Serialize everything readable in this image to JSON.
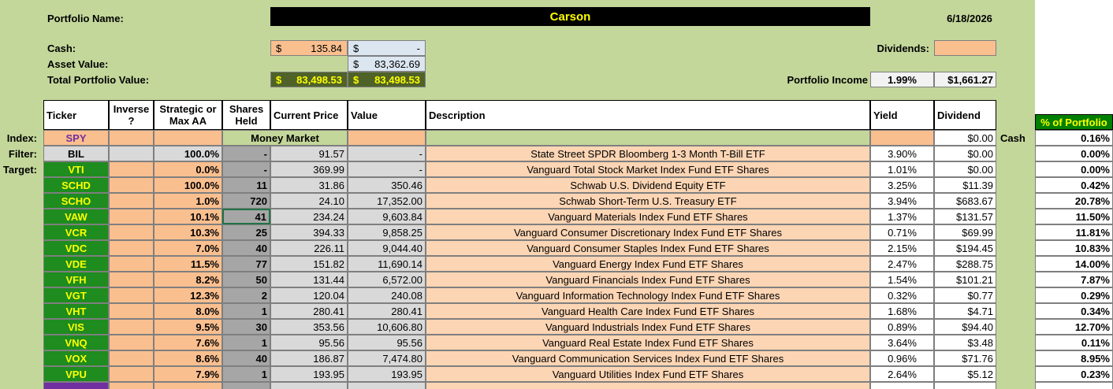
{
  "header": {
    "portfolio_name_label": "Portfolio Name:",
    "portfolio_name": "Carson",
    "date": "6/18/2026",
    "cash_label": "Cash:",
    "cash_1": {
      "symbol": "$",
      "amount": "135.84"
    },
    "cash_2": {
      "symbol": "$",
      "amount": "-"
    },
    "asset_value_label": "Asset Value:",
    "asset_value": {
      "symbol": "$",
      "amount": "83,362.69"
    },
    "total_label": "Total Portfolio Value:",
    "total_1": {
      "symbol": "$",
      "amount": "83,498.53"
    },
    "total_2": {
      "symbol": "$",
      "amount": "83,498.53"
    },
    "dividends_label": "Dividends:",
    "portfolio_income_label": "Portfolio Income",
    "portfolio_income_yield": "1.99%",
    "portfolio_income_dividend": "$1,661.27"
  },
  "table": {
    "columns": [
      "Ticker",
      "Inverse ?",
      "Strategic or Max AA",
      "Shares Held",
      "Current Price",
      "Value",
      "Description",
      "Yield",
      "Dividend"
    ],
    "percent_header": "% of Portfolio",
    "row_labels": [
      "Index:",
      "Filter:",
      "Target:"
    ],
    "index_row": {
      "ticker": "SPY",
      "money_market": "Money Market",
      "dividend": "$0.00",
      "cash": "Cash",
      "percent": "0.16%"
    },
    "rows": [
      {
        "ticker": "BIL",
        "strategic": "100.0%",
        "shares": "-",
        "price": "91.57",
        "value": "-",
        "description": "State Street SPDR Bloomberg 1-3 Month T-Bill ETF",
        "yield": "3.90%",
        "dividend": "$0.00",
        "percent": "0.00%"
      },
      {
        "ticker": "VTI",
        "strategic": "0.0%",
        "shares": "-",
        "price": "369.99",
        "value": "-",
        "description": "Vanguard Total Stock Market Index Fund ETF Shares",
        "yield": "1.01%",
        "dividend": "$0.00",
        "percent": "0.00%"
      },
      {
        "ticker": "SCHD",
        "strategic": "100.0%",
        "shares": "11",
        "price": "31.86",
        "value": "350.46",
        "description": "Schwab U.S. Dividend Equity ETF",
        "yield": "3.25%",
        "dividend": "$11.39",
        "percent": "0.42%"
      },
      {
        "ticker": "SCHO",
        "strategic": "1.0%",
        "shares": "720",
        "price": "24.10",
        "value": "17,352.00",
        "description": "Schwab Short-Term U.S. Treasury ETF",
        "yield": "3.94%",
        "dividend": "$683.67",
        "percent": "20.78%"
      },
      {
        "ticker": "VAW",
        "strategic": "10.1%",
        "shares": "41",
        "price": "234.24",
        "value": "9,603.84",
        "description": "Vanguard Materials Index Fund ETF Shares",
        "yield": "1.37%",
        "dividend": "$131.57",
        "percent": "11.50%"
      },
      {
        "ticker": "VCR",
        "strategic": "10.3%",
        "shares": "25",
        "price": "394.33",
        "value": "9,858.25",
        "description": "Vanguard Consumer Discretionary Index Fund ETF Shares",
        "yield": "0.71%",
        "dividend": "$69.99",
        "percent": "11.81%"
      },
      {
        "ticker": "VDC",
        "strategic": "7.0%",
        "shares": "40",
        "price": "226.11",
        "value": "9,044.40",
        "description": "Vanguard Consumer Staples Index Fund ETF Shares",
        "yield": "2.15%",
        "dividend": "$194.45",
        "percent": "10.83%"
      },
      {
        "ticker": "VDE",
        "strategic": "11.5%",
        "shares": "77",
        "price": "151.82",
        "value": "11,690.14",
        "description": "Vanguard Energy Index Fund ETF Shares",
        "yield": "2.47%",
        "dividend": "$288.75",
        "percent": "14.00%"
      },
      {
        "ticker": "VFH",
        "strategic": "8.2%",
        "shares": "50",
        "price": "131.44",
        "value": "6,572.00",
        "description": "Vanguard Financials Index Fund ETF Shares",
        "yield": "1.54%",
        "dividend": "$101.21",
        "percent": "7.87%"
      },
      {
        "ticker": "VGT",
        "strategic": "12.3%",
        "shares": "2",
        "price": "120.04",
        "value": "240.08",
        "description": "Vanguard Information Technology Index Fund ETF Shares",
        "yield": "0.32%",
        "dividend": "$0.77",
        "percent": "0.29%"
      },
      {
        "ticker": "VHT",
        "strategic": "8.0%",
        "shares": "1",
        "price": "280.41",
        "value": "280.41",
        "description": "Vanguard Health Care Index Fund ETF Shares",
        "yield": "1.68%",
        "dividend": "$4.71",
        "percent": "0.34%"
      },
      {
        "ticker": "VIS",
        "strategic": "9.5%",
        "shares": "30",
        "price": "353.56",
        "value": "10,606.80",
        "description": "Vanguard Industrials Index Fund ETF Shares",
        "yield": "0.89%",
        "dividend": "$94.40",
        "percent": "12.70%"
      },
      {
        "ticker": "VNQ",
        "strategic": "7.6%",
        "shares": "1",
        "price": "95.56",
        "value": "95.56",
        "description": "Vanguard Real Estate Index Fund ETF Shares",
        "yield": "3.64%",
        "dividend": "$3.48",
        "percent": "0.11%"
      },
      {
        "ticker": "VOX",
        "strategic": "8.6%",
        "shares": "40",
        "price": "186.87",
        "value": "7,474.80",
        "description": "Vanguard Communication Services Index Fund ETF Shares",
        "yield": "0.96%",
        "dividend": "$71.76",
        "percent": "8.95%"
      },
      {
        "ticker": "VPU",
        "strategic": "7.9%",
        "shares": "1",
        "price": "193.95",
        "value": "193.95",
        "description": "Vanguard Utilities Index Fund ETF Shares",
        "yield": "2.64%",
        "dividend": "$5.12",
        "percent": "0.23%"
      }
    ]
  }
}
